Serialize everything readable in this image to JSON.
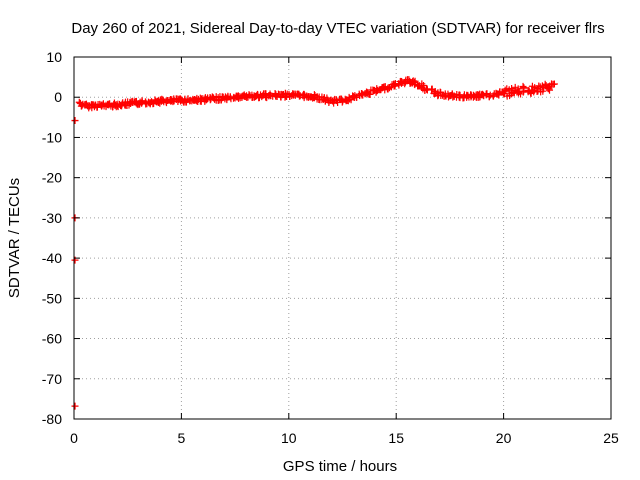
{
  "chart_data": {
    "type": "scatter",
    "title": "Day 260 of 2021, Sidereal Day-to-day VTEC variation (SDTVAR) for receiver flrs",
    "xlabel": "GPS time / hours",
    "ylabel": "SDTVAR / TECUs",
    "xlim": [
      0,
      25
    ],
    "ylim": [
      -80,
      10
    ],
    "xticks": [
      0,
      5,
      10,
      15,
      20,
      25
    ],
    "yticks": [
      10,
      0,
      -10,
      -20,
      -30,
      -40,
      -50,
      -60,
      -70,
      -80
    ],
    "xtick_labels": [
      "0",
      "5",
      "10",
      "15",
      "20",
      "25"
    ],
    "ytick_labels": [
      "10",
      "0",
      "-10",
      "-20",
      "-30",
      "-40",
      "-50",
      "-60",
      "-70",
      "-80"
    ],
    "grid": true,
    "marker": "plus",
    "color": "#ff0000",
    "series": [
      {
        "name": "SDTVAR",
        "trend": [
          {
            "x": 0.3,
            "y": -1.5
          },
          {
            "x": 0.5,
            "y": -2.2
          },
          {
            "x": 1.0,
            "y": -2.1
          },
          {
            "x": 1.5,
            "y": -2.0
          },
          {
            "x": 2.0,
            "y": -1.9
          },
          {
            "x": 3.0,
            "y": -1.4
          },
          {
            "x": 4.0,
            "y": -1.0
          },
          {
            "x": 5.0,
            "y": -0.8
          },
          {
            "x": 6.0,
            "y": -0.6
          },
          {
            "x": 7.0,
            "y": -0.2
          },
          {
            "x": 8.0,
            "y": 0.2
          },
          {
            "x": 9.0,
            "y": 0.4
          },
          {
            "x": 10.0,
            "y": 0.5
          },
          {
            "x": 11.0,
            "y": 0.3
          },
          {
            "x": 11.5,
            "y": -0.3
          },
          {
            "x": 12.0,
            "y": -1.1
          },
          {
            "x": 12.5,
            "y": -0.8
          },
          {
            "x": 13.0,
            "y": 0.0
          },
          {
            "x": 13.5,
            "y": 0.8
          },
          {
            "x": 14.0,
            "y": 1.5
          },
          {
            "x": 14.5,
            "y": 2.3
          },
          {
            "x": 15.0,
            "y": 3.2
          },
          {
            "x": 15.5,
            "y": 4.0
          },
          {
            "x": 15.8,
            "y": 3.8
          },
          {
            "x": 16.0,
            "y": 3.2
          },
          {
            "x": 16.5,
            "y": 1.8
          },
          {
            "x": 17.0,
            "y": 0.8
          },
          {
            "x": 17.5,
            "y": 0.4
          },
          {
            "x": 18.0,
            "y": 0.2
          },
          {
            "x": 19.0,
            "y": 0.3
          },
          {
            "x": 19.5,
            "y": 0.6
          },
          {
            "x": 20.0,
            "y": 1.0
          },
          {
            "x": 20.5,
            "y": 1.5
          },
          {
            "x": 21.0,
            "y": 1.8
          },
          {
            "x": 21.5,
            "y": 2.0
          },
          {
            "x": 22.0,
            "y": 2.3
          },
          {
            "x": 22.3,
            "y": 2.6
          }
        ],
        "outliers": [
          {
            "x": 0.0,
            "y": -5.8
          },
          {
            "x": 0.0,
            "y": -30.0
          },
          {
            "x": 0.0,
            "y": -40.5
          },
          {
            "x": 0.0,
            "y": -76.8
          }
        ]
      }
    ]
  }
}
